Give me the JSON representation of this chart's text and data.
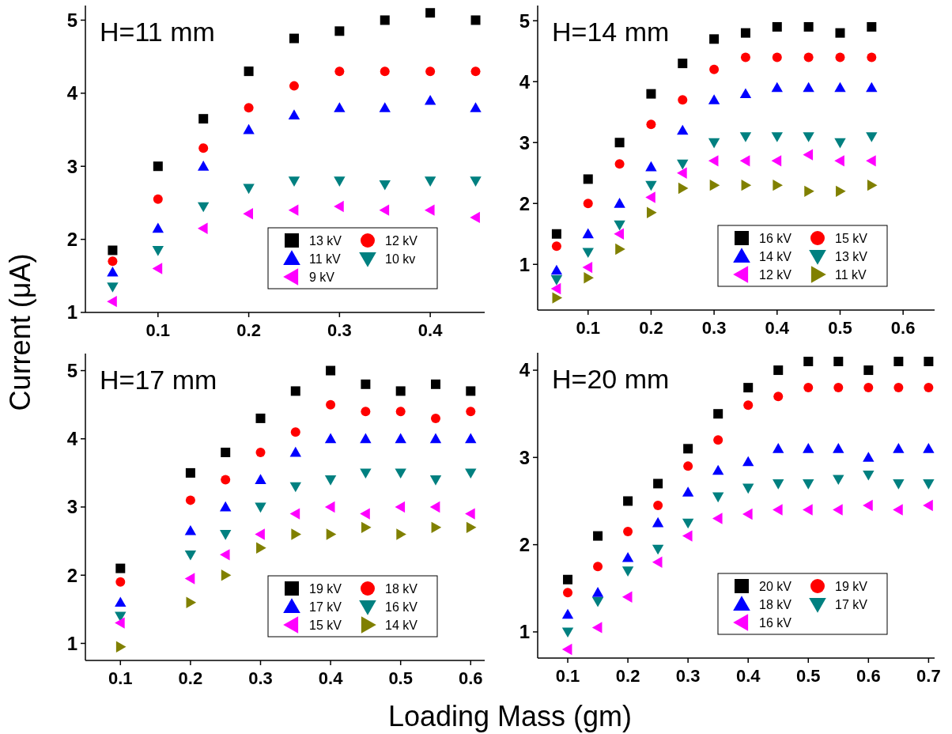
{
  "chart_data": [
    {
      "type": "scatter",
      "title": "H=11 mm",
      "ylabel": "Current (μA)",
      "x": [
        0.05,
        0.1,
        0.15,
        0.2,
        0.25,
        0.3,
        0.35,
        0.4,
        0.45
      ],
      "xlim": [
        0.02,
        0.46
      ],
      "xticks": [
        0.1,
        0.2,
        0.3,
        0.4
      ],
      "ylim": [
        1,
        5.2
      ],
      "yticks": [
        1,
        2,
        3,
        4,
        5
      ],
      "legend": "bottom right",
      "grid": false,
      "series": [
        {
          "name": "13 kV",
          "color": "#000000",
          "marker": "square",
          "values": [
            1.85,
            3.0,
            3.65,
            4.3,
            4.75,
            4.85,
            5.0,
            5.1,
            5.0
          ]
        },
        {
          "name": "12 kV",
          "color": "#ff0000",
          "marker": "circle",
          "values": [
            1.7,
            2.55,
            3.25,
            3.8,
            4.1,
            4.3,
            4.3,
            4.3,
            4.3
          ]
        },
        {
          "name": "11 kV",
          "color": "#0000ff",
          "marker": "triangle",
          "values": [
            1.55,
            2.15,
            3.0,
            3.5,
            3.7,
            3.8,
            3.8,
            3.9,
            3.8
          ]
        },
        {
          "name": "10 kv",
          "color": "#008080",
          "marker": "triangle-down",
          "values": [
            1.35,
            1.85,
            2.45,
            2.7,
            2.8,
            2.8,
            2.75,
            2.8,
            2.8
          ]
        },
        {
          "name": "9 kV",
          "color": "#ff00ff",
          "marker": "triangle-left",
          "values": [
            1.15,
            1.6,
            2.15,
            2.35,
            2.4,
            2.45,
            2.4,
            2.4,
            2.3
          ]
        }
      ]
    },
    {
      "type": "scatter",
      "title": "H=14 mm",
      "x": [
        0.05,
        0.1,
        0.15,
        0.2,
        0.25,
        0.3,
        0.35,
        0.4,
        0.45,
        0.5,
        0.55
      ],
      "xlim": [
        0.02,
        0.65
      ],
      "xticks": [
        0.1,
        0.2,
        0.3,
        0.4,
        0.5,
        0.6
      ],
      "ylim": [
        0.25,
        5.25
      ],
      "yticks": [
        1,
        2,
        3,
        4,
        5
      ],
      "legend": "bottom right",
      "grid": false,
      "series": [
        {
          "name": "16 kV",
          "color": "#000000",
          "marker": "square",
          "values": [
            1.5,
            2.4,
            3.0,
            3.8,
            4.3,
            4.7,
            4.8,
            4.9,
            4.9,
            4.8,
            4.9
          ]
        },
        {
          "name": "15 kV",
          "color": "#ff0000",
          "marker": "circle",
          "values": [
            1.3,
            2.0,
            2.65,
            3.3,
            3.7,
            4.2,
            4.4,
            4.4,
            4.4,
            4.4,
            4.4
          ]
        },
        {
          "name": "14 kV",
          "color": "#0000ff",
          "marker": "triangle",
          "values": [
            0.9,
            1.5,
            2.0,
            2.6,
            3.2,
            3.7,
            3.8,
            3.9,
            3.9,
            3.9,
            3.9
          ]
        },
        {
          "name": "13 kV",
          "color": "#008080",
          "marker": "triangle-down",
          "values": [
            0.75,
            1.2,
            1.65,
            2.3,
            2.65,
            3.0,
            3.1,
            3.1,
            3.1,
            3.0,
            3.1
          ]
        },
        {
          "name": "12 kV",
          "color": "#ff00ff",
          "marker": "triangle-left",
          "values": [
            0.6,
            0.95,
            1.5,
            2.1,
            2.5,
            2.7,
            2.7,
            2.7,
            2.8,
            2.7,
            2.7
          ]
        },
        {
          "name": "11 kV",
          "color": "#808000",
          "marker": "triangle-right",
          "values": [
            0.45,
            0.78,
            1.25,
            1.85,
            2.25,
            2.3,
            2.3,
            2.3,
            2.2,
            2.2,
            2.3
          ]
        }
      ]
    },
    {
      "type": "scatter",
      "title": "H=17 mm",
      "xlabel": "Loading Mass (gm)",
      "x": [
        0.1,
        0.2,
        0.25,
        0.3,
        0.35,
        0.4,
        0.45,
        0.5,
        0.55,
        0.6
      ],
      "xlim": [
        0.05,
        0.62
      ],
      "xticks": [
        0.1,
        0.2,
        0.3,
        0.4,
        0.5,
        0.6
      ],
      "ylim": [
        0.75,
        5.25
      ],
      "yticks": [
        1,
        2,
        3,
        4,
        5
      ],
      "legend": "bottom right",
      "grid": false,
      "series": [
        {
          "name": "19 kV",
          "color": "#000000",
          "marker": "square",
          "values": [
            2.1,
            3.5,
            3.8,
            4.3,
            4.7,
            5.0,
            4.8,
            4.7,
            4.8,
            4.7
          ]
        },
        {
          "name": "18 kV",
          "color": "#ff0000",
          "marker": "circle",
          "values": [
            1.9,
            3.1,
            3.4,
            3.8,
            4.1,
            4.5,
            4.4,
            4.4,
            4.3,
            4.4
          ]
        },
        {
          "name": "17 kV",
          "color": "#0000ff",
          "marker": "triangle",
          "values": [
            1.6,
            2.65,
            3.0,
            3.4,
            3.8,
            4.0,
            4.0,
            4.0,
            4.0,
            4.0
          ]
        },
        {
          "name": "16 kV",
          "color": "#008080",
          "marker": "triangle-down",
          "values": [
            1.4,
            2.3,
            2.6,
            3.0,
            3.3,
            3.4,
            3.5,
            3.5,
            3.4,
            3.5
          ]
        },
        {
          "name": "15 kV",
          "color": "#ff00ff",
          "marker": "triangle-left",
          "values": [
            1.3,
            1.95,
            2.3,
            2.6,
            2.9,
            3.0,
            2.9,
            3.0,
            3.0,
            2.9
          ]
        },
        {
          "name": "14 kV",
          "color": "#808000",
          "marker": "triangle-right",
          "values": [
            0.95,
            1.6,
            2.0,
            2.4,
            2.6,
            2.6,
            2.7,
            2.6,
            2.7,
            2.7
          ]
        }
      ]
    },
    {
      "type": "scatter",
      "title": "H=20 mm",
      "x": [
        0.1,
        0.15,
        0.2,
        0.25,
        0.3,
        0.35,
        0.4,
        0.45,
        0.5,
        0.55,
        0.6,
        0.65,
        0.7
      ],
      "xlim": [
        0.05,
        0.71
      ],
      "xticks": [
        0.1,
        0.2,
        0.3,
        0.4,
        0.5,
        0.6,
        0.7
      ],
      "ylim": [
        0.7,
        4.2
      ],
      "yticks": [
        1,
        2,
        3,
        4
      ],
      "legend": "bottom right",
      "grid": false,
      "series": [
        {
          "name": "20 kV",
          "color": "#000000",
          "marker": "square",
          "values": [
            1.6,
            2.1,
            2.5,
            2.7,
            3.1,
            3.5,
            3.8,
            4.0,
            4.1,
            4.1,
            4.0,
            4.1,
            4.1
          ]
        },
        {
          "name": "19 kV",
          "color": "#ff0000",
          "marker": "circle",
          "values": [
            1.45,
            1.75,
            2.15,
            2.45,
            2.9,
            3.2,
            3.6,
            3.7,
            3.8,
            3.8,
            3.8,
            3.8,
            3.8
          ]
        },
        {
          "name": "18 kV",
          "color": "#0000ff",
          "marker": "triangle",
          "values": [
            1.2,
            1.45,
            1.85,
            2.25,
            2.6,
            2.85,
            2.95,
            3.1,
            3.1,
            3.1,
            3.0,
            3.1,
            3.1
          ]
        },
        {
          "name": "17 kV",
          "color": "#008080",
          "marker": "triangle-down",
          "values": [
            1.0,
            1.35,
            1.7,
            1.95,
            2.25,
            2.55,
            2.65,
            2.7,
            2.7,
            2.75,
            2.8,
            2.7,
            2.7
          ]
        },
        {
          "name": "16 kV",
          "color": "#ff00ff",
          "marker": "triangle-left",
          "values": [
            0.8,
            1.05,
            1.4,
            1.8,
            2.1,
            2.3,
            2.35,
            2.4,
            2.4,
            2.4,
            2.45,
            2.4,
            2.45
          ]
        }
      ]
    }
  ]
}
